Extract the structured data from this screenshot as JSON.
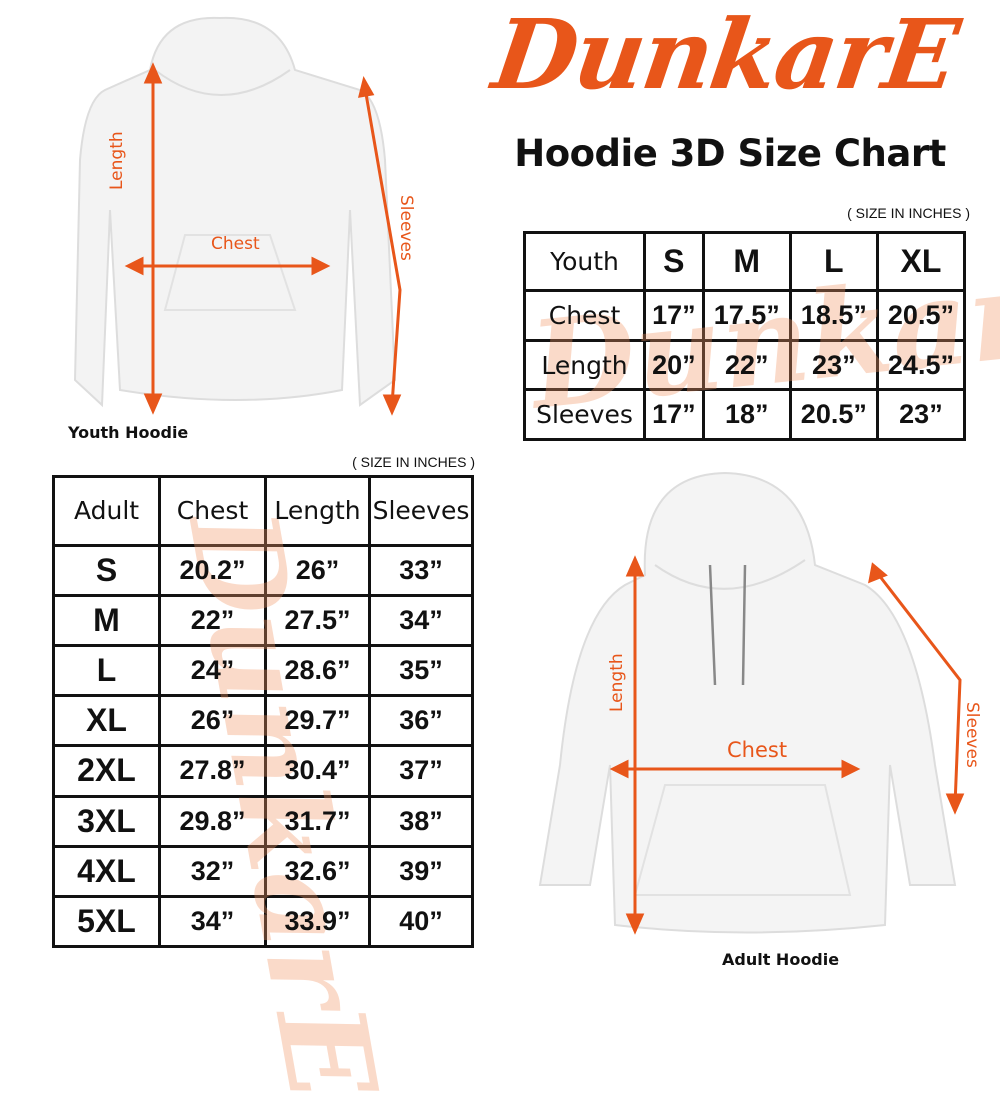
{
  "brand": {
    "logo_text": "DunkarE",
    "color": "#e8561a"
  },
  "title": "Hoodie 3D Size Chart",
  "youth": {
    "units_note": "( SIZE IN INCHES )",
    "header": [
      "Youth",
      "S",
      "M",
      "L",
      "XL"
    ],
    "rows": [
      [
        "Chest",
        "17”",
        "17.5”",
        "18.5”",
        "20.5”"
      ],
      [
        "Length",
        "20”",
        "22”",
        "23”",
        "24.5”"
      ],
      [
        "Sleeves",
        "17”",
        "18”",
        "20.5”",
        "23”"
      ]
    ],
    "image_label": "Youth Hoodie",
    "measure_labels": {
      "length": "Length",
      "chest": "Chest",
      "sleeves": "Sleeves"
    }
  },
  "adult": {
    "units_note": "( SIZE IN INCHES )",
    "header": [
      "Adult",
      "Chest",
      "Length",
      "Sleeves"
    ],
    "rows": [
      [
        "S",
        "20.2”",
        "26”",
        "33”"
      ],
      [
        "M",
        "22”",
        "27.5”",
        "34”"
      ],
      [
        "L",
        "24”",
        "28.6”",
        "35”"
      ],
      [
        "XL",
        "26”",
        "29.7”",
        "36”"
      ],
      [
        "2XL",
        "27.8”",
        "30.4”",
        "37”"
      ],
      [
        "3XL",
        "29.8”",
        "31.7”",
        "38”"
      ],
      [
        "4XL",
        "32”",
        "32.6”",
        "39”"
      ],
      [
        "5XL",
        "34”",
        "33.9”",
        "40”"
      ]
    ],
    "image_label": "Adult Hoodie",
    "measure_labels": {
      "length": "Length",
      "chest": "Chest",
      "sleeves": "Sleeves"
    }
  }
}
